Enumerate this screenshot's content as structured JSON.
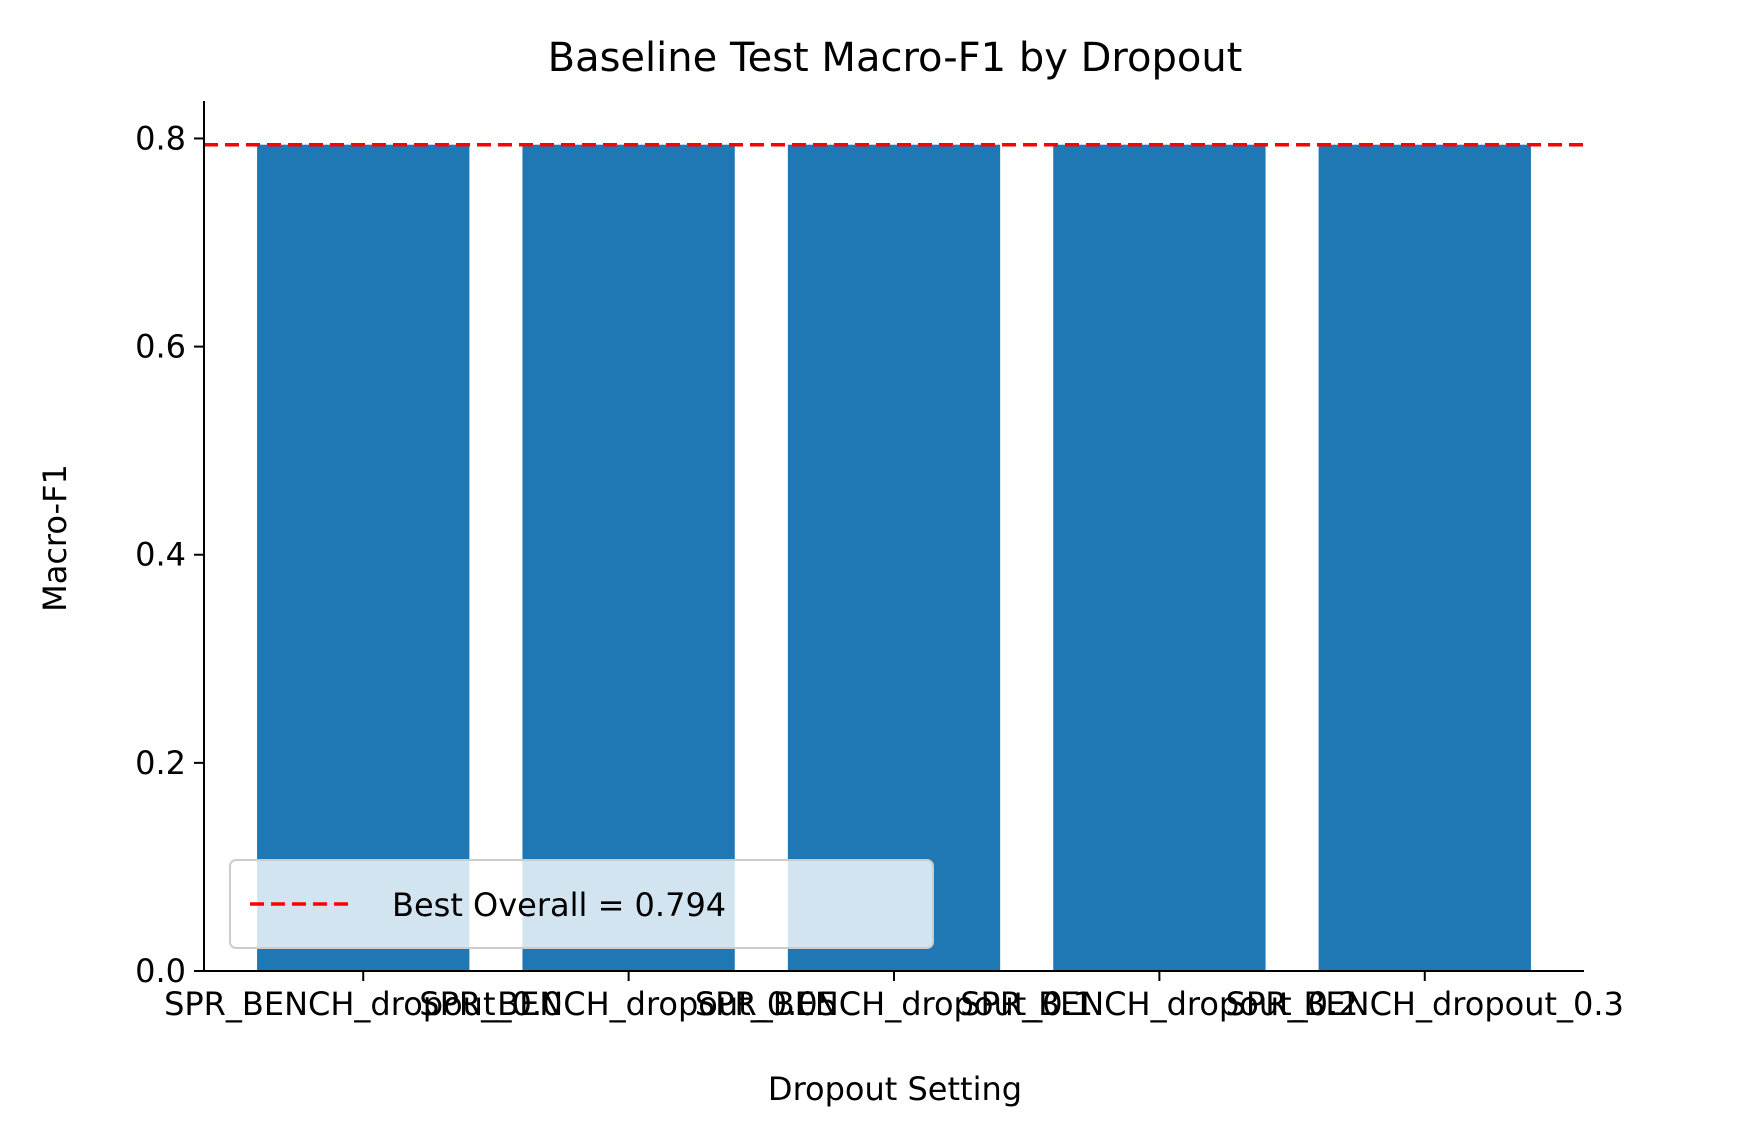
{
  "chart_data": {
    "type": "bar",
    "title": "Baseline Test Macro-F1 by Dropout",
    "xlabel": "Dropout Setting",
    "ylabel": "Macro-F1",
    "categories": [
      "SPR_BENCH_dropout_0.0",
      "SPR_BENCH_dropout_0.05",
      "SPR_BENCH_dropout_0.1",
      "SPR_BENCH_dropout_0.2",
      "SPR_BENCH_dropout_0.3"
    ],
    "values": [
      0.794,
      0.794,
      0.794,
      0.794,
      0.794
    ],
    "ylim": [
      0,
      0.836
    ],
    "yticks": [
      0.0,
      0.2,
      0.4,
      0.6,
      0.8
    ],
    "ytick_labels": [
      "0.0",
      "0.2",
      "0.4",
      "0.6",
      "0.8"
    ],
    "reference_line": {
      "value": 0.794,
      "label": "Best Overall = 0.794",
      "color": "#ff0000",
      "style": "dashed"
    },
    "bar_color": "#1f77b4",
    "legend_position": "lower-left",
    "grid": false
  }
}
